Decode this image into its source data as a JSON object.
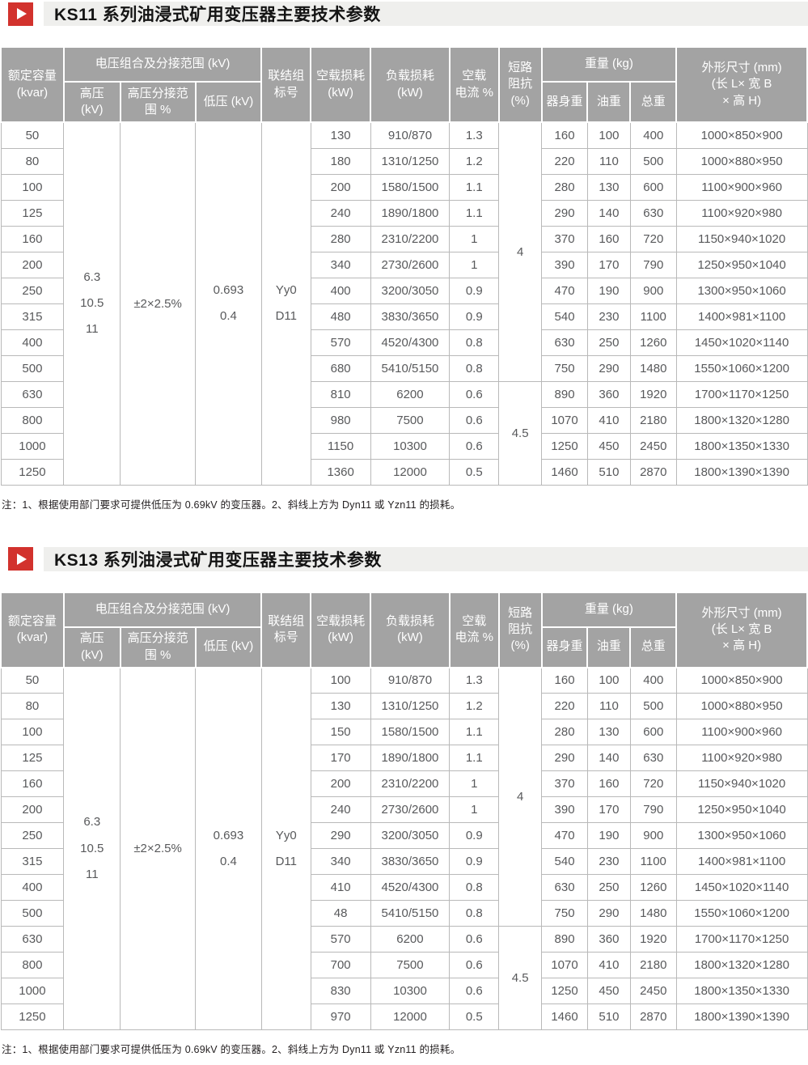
{
  "colors": {
    "accent_red": "#d2322d",
    "title_bar_bg": "#efefed",
    "table_header_bg": "#a3a3a3",
    "table_header_text": "#ffffff",
    "cell_border": "#b9b9b9",
    "cell_text": "#58595b"
  },
  "tables": [
    {
      "title": "KS11 系列油浸式矿用变压器主要技术参数",
      "note": "注：1、根据使用部门要求可提供低压为 0.69kV 的变压器。2、斜线上方为 Dyn11 或 Yzn11 的损耗。",
      "header": {
        "capacity": "额定容量\n(kvar)",
        "voltage_group": "电压组合及分接范围 (kV)",
        "hv": "高压\n(kV)",
        "hv_tap_range": "高压分接范\n围 %",
        "lv": "低压 (kV)",
        "vector_group": "联结组\n标号",
        "no_load_loss": "空载损耗\n(kW)",
        "load_loss": "负载损耗\n(kW)",
        "no_load_current": "空载\n电流 %",
        "impedance": "短路\n阻抗\n(%)",
        "weight": "重量 (kg)",
        "body_weight": "器身重",
        "oil_weight": "油重",
        "total_weight": "总重",
        "dimensions": "外形尺寸 (mm)\n(长 L× 宽 B\n× 高 H)"
      },
      "merged": {
        "hv": "6.3\n10.5\n11",
        "hv_tap_range": "±2×2.5%",
        "lv": "0.693\n0.4",
        "vector_group": "Yy0\nD11",
        "impedance_rows_1_10": "4",
        "impedance_rows_11_14": "4.5"
      },
      "rows": [
        {
          "capacity": "50",
          "no_load_loss": "130",
          "load_loss": "910/870",
          "no_load_current": "1.3",
          "body_weight": "160",
          "oil_weight": "100",
          "total_weight": "400",
          "dimensions": "1000×850×900"
        },
        {
          "capacity": "80",
          "no_load_loss": "180",
          "load_loss": "1310/1250",
          "no_load_current": "1.2",
          "body_weight": "220",
          "oil_weight": "110",
          "total_weight": "500",
          "dimensions": "1000×880×950"
        },
        {
          "capacity": "100",
          "no_load_loss": "200",
          "load_loss": "1580/1500",
          "no_load_current": "1.1",
          "body_weight": "280",
          "oil_weight": "130",
          "total_weight": "600",
          "dimensions": "1100×900×960"
        },
        {
          "capacity": "125",
          "no_load_loss": "240",
          "load_loss": "1890/1800",
          "no_load_current": "1.1",
          "body_weight": "290",
          "oil_weight": "140",
          "total_weight": "630",
          "dimensions": "1100×920×980"
        },
        {
          "capacity": "160",
          "no_load_loss": "280",
          "load_loss": "2310/2200",
          "no_load_current": "1",
          "body_weight": "370",
          "oil_weight": "160",
          "total_weight": "720",
          "dimensions": "1150×940×1020"
        },
        {
          "capacity": "200",
          "no_load_loss": "340",
          "load_loss": "2730/2600",
          "no_load_current": "1",
          "body_weight": "390",
          "oil_weight": "170",
          "total_weight": "790",
          "dimensions": "1250×950×1040"
        },
        {
          "capacity": "250",
          "no_load_loss": "400",
          "load_loss": "3200/3050",
          "no_load_current": "0.9",
          "body_weight": "470",
          "oil_weight": "190",
          "total_weight": "900",
          "dimensions": "1300×950×1060"
        },
        {
          "capacity": "315",
          "no_load_loss": "480",
          "load_loss": "3830/3650",
          "no_load_current": "0.9",
          "body_weight": "540",
          "oil_weight": "230",
          "total_weight": "1100",
          "dimensions": "1400×981×1100"
        },
        {
          "capacity": "400",
          "no_load_loss": "570",
          "load_loss": "4520/4300",
          "no_load_current": "0.8",
          "body_weight": "630",
          "oil_weight": "250",
          "total_weight": "1260",
          "dimensions": "1450×1020×1140"
        },
        {
          "capacity": "500",
          "no_load_loss": "680",
          "load_loss": "5410/5150",
          "no_load_current": "0.8",
          "body_weight": "750",
          "oil_weight": "290",
          "total_weight": "1480",
          "dimensions": "1550×1060×1200"
        },
        {
          "capacity": "630",
          "no_load_loss": "810",
          "load_loss": "6200",
          "no_load_current": "0.6",
          "body_weight": "890",
          "oil_weight": "360",
          "total_weight": "1920",
          "dimensions": "1700×1170×1250"
        },
        {
          "capacity": "800",
          "no_load_loss": "980",
          "load_loss": "7500",
          "no_load_current": "0.6",
          "body_weight": "1070",
          "oil_weight": "410",
          "total_weight": "2180",
          "dimensions": "1800×1320×1280"
        },
        {
          "capacity": "1000",
          "no_load_loss": "1150",
          "load_loss": "10300",
          "no_load_current": "0.6",
          "body_weight": "1250",
          "oil_weight": "450",
          "total_weight": "2450",
          "dimensions": "1800×1350×1330"
        },
        {
          "capacity": "1250",
          "no_load_loss": "1360",
          "load_loss": "12000",
          "no_load_current": "0.5",
          "body_weight": "1460",
          "oil_weight": "510",
          "total_weight": "2870",
          "dimensions": "1800×1390×1390"
        }
      ]
    },
    {
      "title": "KS13 系列油浸式矿用变压器主要技术参数",
      "note": "注：1、根据使用部门要求可提供低压为 0.69kV 的变压器。2、斜线上方为 Dyn11 或 Yzn11 的损耗。",
      "header": {
        "capacity": "额定容量\n(kvar)",
        "voltage_group": "电压组合及分接范围 (kV)",
        "hv": "高压\n(kV)",
        "hv_tap_range": "高压分接范\n围 %",
        "lv": "低压 (kV)",
        "vector_group": "联结组\n标号",
        "no_load_loss": "空载损耗\n(kW)",
        "load_loss": "负载损耗\n(kW)",
        "no_load_current": "空载\n电流 %",
        "impedance": "短路\n阻抗\n(%)",
        "weight": "重量 (kg)",
        "body_weight": "器身重",
        "oil_weight": "油重",
        "total_weight": "总重",
        "dimensions": "外形尺寸 (mm)\n(长 L× 宽 B\n× 高 H)"
      },
      "merged": {
        "hv": "6.3\n10.5\n11",
        "hv_tap_range": "±2×2.5%",
        "lv": "0.693\n0.4",
        "vector_group": "Yy0\nD11",
        "impedance_rows_1_10": "4",
        "impedance_rows_11_14": "4.5"
      },
      "rows": [
        {
          "capacity": "50",
          "no_load_loss": "100",
          "load_loss": "910/870",
          "no_load_current": "1.3",
          "body_weight": "160",
          "oil_weight": "100",
          "total_weight": "400",
          "dimensions": "1000×850×900"
        },
        {
          "capacity": "80",
          "no_load_loss": "130",
          "load_loss": "1310/1250",
          "no_load_current": "1.2",
          "body_weight": "220",
          "oil_weight": "110",
          "total_weight": "500",
          "dimensions": "1000×880×950"
        },
        {
          "capacity": "100",
          "no_load_loss": "150",
          "load_loss": "1580/1500",
          "no_load_current": "1.1",
          "body_weight": "280",
          "oil_weight": "130",
          "total_weight": "600",
          "dimensions": "1100×900×960"
        },
        {
          "capacity": "125",
          "no_load_loss": "170",
          "load_loss": "1890/1800",
          "no_load_current": "1.1",
          "body_weight": "290",
          "oil_weight": "140",
          "total_weight": "630",
          "dimensions": "1100×920×980"
        },
        {
          "capacity": "160",
          "no_load_loss": "200",
          "load_loss": "2310/2200",
          "no_load_current": "1",
          "body_weight": "370",
          "oil_weight": "160",
          "total_weight": "720",
          "dimensions": "1150×940×1020"
        },
        {
          "capacity": "200",
          "no_load_loss": "240",
          "load_loss": "2730/2600",
          "no_load_current": "1",
          "body_weight": "390",
          "oil_weight": "170",
          "total_weight": "790",
          "dimensions": "1250×950×1040"
        },
        {
          "capacity": "250",
          "no_load_loss": "290",
          "load_loss": "3200/3050",
          "no_load_current": "0.9",
          "body_weight": "470",
          "oil_weight": "190",
          "total_weight": "900",
          "dimensions": "1300×950×1060"
        },
        {
          "capacity": "315",
          "no_load_loss": "340",
          "load_loss": "3830/3650",
          "no_load_current": "0.9",
          "body_weight": "540",
          "oil_weight": "230",
          "total_weight": "1100",
          "dimensions": "1400×981×1100"
        },
        {
          "capacity": "400",
          "no_load_loss": "410",
          "load_loss": "4520/4300",
          "no_load_current": "0.8",
          "body_weight": "630",
          "oil_weight": "250",
          "total_weight": "1260",
          "dimensions": "1450×1020×1140"
        },
        {
          "capacity": "500",
          "no_load_loss": "48",
          "load_loss": "5410/5150",
          "no_load_current": "0.8",
          "body_weight": "750",
          "oil_weight": "290",
          "total_weight": "1480",
          "dimensions": "1550×1060×1200"
        },
        {
          "capacity": "630",
          "no_load_loss": "570",
          "load_loss": "6200",
          "no_load_current": "0.6",
          "body_weight": "890",
          "oil_weight": "360",
          "total_weight": "1920",
          "dimensions": "1700×1170×1250"
        },
        {
          "capacity": "800",
          "no_load_loss": "700",
          "load_loss": "7500",
          "no_load_current": "0.6",
          "body_weight": "1070",
          "oil_weight": "410",
          "total_weight": "2180",
          "dimensions": "1800×1320×1280"
        },
        {
          "capacity": "1000",
          "no_load_loss": "830",
          "load_loss": "10300",
          "no_load_current": "0.6",
          "body_weight": "1250",
          "oil_weight": "450",
          "total_weight": "2450",
          "dimensions": "1800×1350×1330"
        },
        {
          "capacity": "1250",
          "no_load_loss": "970",
          "load_loss": "12000",
          "no_load_current": "0.5",
          "body_weight": "1460",
          "oil_weight": "510",
          "total_weight": "2870",
          "dimensions": "1800×1390×1390"
        }
      ]
    }
  ]
}
